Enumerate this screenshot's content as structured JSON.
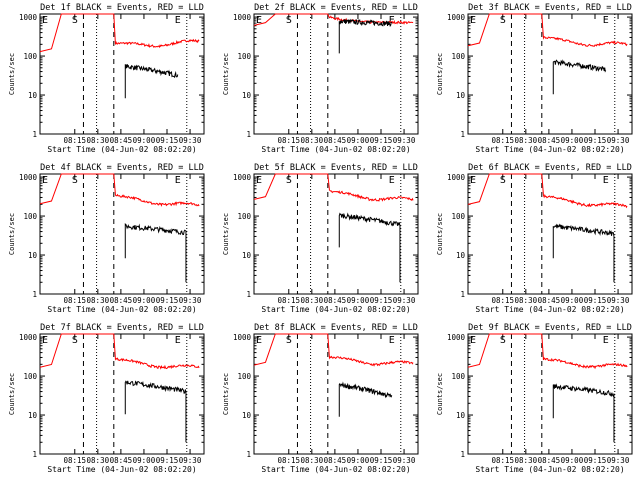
{
  "chart_data": [
    {
      "type": "line",
      "title": "Det 1f BLACK = Events, RED = LLD",
      "xlabel": "Start Time (04-Jun-02 08:02:20)",
      "ylabel": "Counts/sec",
      "x_ticks": [
        "08:15",
        "08:30",
        "08:45",
        "09:00",
        "09:15",
        "09:30"
      ],
      "y_ticks": [
        "1",
        "10",
        "100",
        "1000"
      ],
      "ylim": [
        1,
        1200
      ],
      "yscale": "log",
      "markers": {
        "left": "E",
        "mid": "S",
        "right": "E"
      },
      "series": [
        {
          "name": "LLD",
          "color": "#ff0000",
          "plateau": [
            170,
            230
          ]
        },
        {
          "name": "Events",
          "color": "#000000",
          "start": 55,
          "end": 32,
          "dropout": false
        }
      ]
    },
    {
      "type": "line",
      "title": "Det 2f BLACK = Events, RED = LLD",
      "xlabel": "Start Time (04-Jun-02 08:02:20)",
      "ylabel": "Counts/sec",
      "x_ticks": [
        "08:15",
        "08:30",
        "08:45",
        "09:00",
        "09:15",
        "09:30"
      ],
      "y_ticks": [
        "1",
        "10",
        "100",
        "1000"
      ],
      "ylim": [
        1,
        1200
      ],
      "yscale": "log",
      "markers": {
        "left": "E",
        "mid": "S",
        "right": "E"
      },
      "series": [
        {
          "name": "LLD",
          "color": "#ff0000",
          "plateau": [
            800,
            700
          ]
        },
        {
          "name": "Events",
          "color": "#000000",
          "start": 780,
          "end": 680,
          "dropout": false
        }
      ]
    },
    {
      "type": "line",
      "title": "Det 3f BLACK = Events, RED = LLD",
      "xlabel": "Start Time (04-Jun-02 08:02:20)",
      "ylabel": "Counts/sec",
      "x_ticks": [
        "08:15",
        "08:30",
        "08:45",
        "09:00",
        "09:15",
        "09:30"
      ],
      "y_ticks": [
        "1",
        "10",
        "100",
        "1000"
      ],
      "ylim": [
        1,
        1200
      ],
      "yscale": "log",
      "markers": {
        "left": "E",
        "mid": "S",
        "right": "E"
      },
      "series": [
        {
          "name": "LLD",
          "color": "#ff0000",
          "plateau": [
            240,
            190
          ]
        },
        {
          "name": "Events",
          "color": "#000000",
          "start": 70,
          "end": 45,
          "dropout": false
        }
      ]
    },
    {
      "type": "line",
      "title": "Det 4f BLACK = Events, RED = LLD",
      "xlabel": "Start Time (04-Jun-02 08:02:20)",
      "ylabel": "Counts/sec",
      "x_ticks": [
        "08:15",
        "08:30",
        "08:45",
        "09:00",
        "09:15",
        "09:30"
      ],
      "y_ticks": [
        "1",
        "10",
        "100",
        "1000"
      ],
      "ylim": [
        1,
        1200
      ],
      "yscale": "log",
      "markers": {
        "left": "E",
        "mid": "S",
        "right": "E"
      },
      "series": [
        {
          "name": "LLD",
          "color": "#ff0000",
          "plateau": [
            270,
            180
          ]
        },
        {
          "name": "Events",
          "color": "#000000",
          "start": 55,
          "end": 38,
          "dropout": true
        }
      ]
    },
    {
      "type": "line",
      "title": "Det 5f BLACK = Events, RED = LLD",
      "xlabel": "Start Time (04-Jun-02 08:02:20)",
      "ylabel": "Counts/sec",
      "x_ticks": [
        "08:15",
        "08:30",
        "08:45",
        "09:00",
        "09:15",
        "09:30"
      ],
      "y_ticks": [
        "1",
        "10",
        "100",
        "1000"
      ],
      "ylim": [
        1,
        1200
      ],
      "yscale": "log",
      "markers": {
        "left": "E",
        "mid": "S",
        "right": "E"
      },
      "series": [
        {
          "name": "LLD",
          "color": "#ff0000",
          "plateau": [
            350,
            250
          ]
        },
        {
          "name": "Events",
          "color": "#000000",
          "start": 105,
          "end": 60,
          "dropout": true
        }
      ]
    },
    {
      "type": "line",
      "title": "Det 6f BLACK = Events, RED = LLD",
      "xlabel": "Start Time (04-Jun-02 08:02:20)",
      "ylabel": "Counts/sec",
      "x_ticks": [
        "08:15",
        "08:30",
        "08:45",
        "09:00",
        "09:15",
        "09:30"
      ],
      "y_ticks": [
        "1",
        "10",
        "100",
        "1000"
      ],
      "ylim": [
        1,
        1200
      ],
      "yscale": "log",
      "markers": {
        "left": "E",
        "mid": "S",
        "right": "E"
      },
      "series": [
        {
          "name": "LLD",
          "color": "#ff0000",
          "plateau": [
            260,
            170
          ]
        },
        {
          "name": "Events",
          "color": "#000000",
          "start": 55,
          "end": 35,
          "dropout": true
        }
      ]
    },
    {
      "type": "line",
      "title": "Det 7f BLACK = Events, RED = LLD",
      "xlabel": "Start Time (04-Jun-02 08:02:20)",
      "ylabel": "Counts/sec",
      "x_ticks": [
        "08:15",
        "08:30",
        "08:45",
        "09:00",
        "09:15",
        "09:30"
      ],
      "y_ticks": [
        "1",
        "10",
        "100",
        "1000"
      ],
      "ylim": [
        1,
        1200
      ],
      "yscale": "log",
      "markers": {
        "left": "E",
        "mid": "S",
        "right": "E"
      },
      "series": [
        {
          "name": "LLD",
          "color": "#ff0000",
          "plateau": [
            220,
            160
          ]
        },
        {
          "name": "Events",
          "color": "#000000",
          "start": 70,
          "end": 40,
          "dropout": true
        }
      ]
    },
    {
      "type": "line",
      "title": "Det 8f BLACK = Events, RED = LLD",
      "xlabel": "Start Time (04-Jun-02 08:02:20)",
      "ylabel": "Counts/sec",
      "x_ticks": [
        "08:15",
        "08:30",
        "08:45",
        "09:00",
        "09:15",
        "09:30"
      ],
      "y_ticks": [
        "1",
        "10",
        "100",
        "1000"
      ],
      "ylim": [
        1,
        1200
      ],
      "yscale": "log",
      "markers": {
        "left": "E",
        "mid": "S",
        "right": "E"
      },
      "series": [
        {
          "name": "LLD",
          "color": "#ff0000",
          "plateau": [
            250,
            200
          ]
        },
        {
          "name": "Events",
          "color": "#000000",
          "start": 60,
          "end": 30,
          "dropout": false
        }
      ]
    },
    {
      "type": "line",
      "title": "Det 9f BLACK = Events, RED = LLD",
      "xlabel": "Start Time (04-Jun-02 08:02:20)",
      "ylabel": "Counts/sec",
      "x_ticks": [
        "08:15",
        "08:30",
        "08:45",
        "09:00",
        "09:15",
        "09:30"
      ],
      "y_ticks": [
        "1",
        "10",
        "100",
        "1000"
      ],
      "ylim": [
        1,
        1200
      ],
      "yscale": "log",
      "markers": {
        "left": "E",
        "mid": "S",
        "right": "E"
      },
      "series": [
        {
          "name": "LLD",
          "color": "#ff0000",
          "plateau": [
            220,
            170
          ]
        },
        {
          "name": "Events",
          "color": "#000000",
          "start": 55,
          "end": 35,
          "dropout": true
        }
      ]
    }
  ]
}
